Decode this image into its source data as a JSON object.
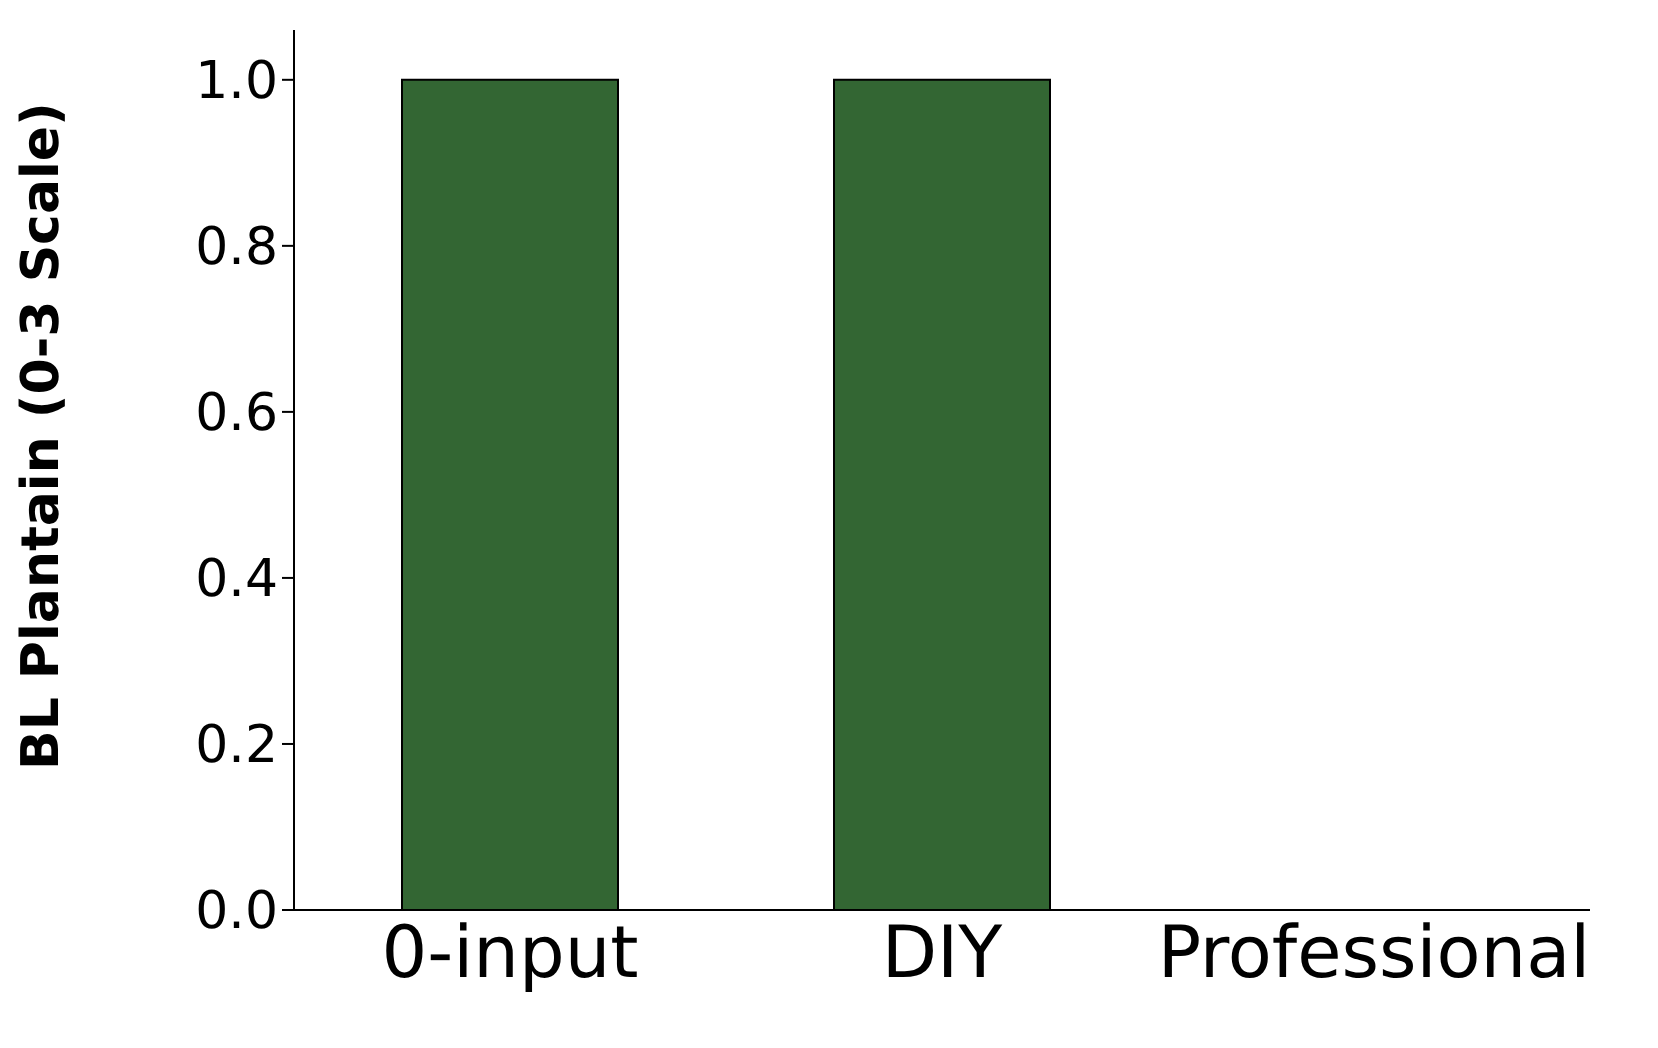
{
  "chart_data": {
    "type": "bar",
    "ylabel": "BL Plantain (0-3 Scale)",
    "categories": [
      "0-input",
      "DIY",
      "Professional"
    ],
    "values": [
      1.0,
      1.0,
      0.0
    ],
    "errors": [
      0,
      0,
      0
    ],
    "color": "#336633",
    "ylim": [
      0,
      1.06
    ],
    "yticks": [
      {
        "value": 0,
        "label": "0.0"
      },
      {
        "value": 0.2,
        "label": "0.2"
      },
      {
        "value": 0.4,
        "label": "0.4"
      },
      {
        "value": 0.6,
        "label": "0.6"
      },
      {
        "value": 0.8,
        "label": "0.8"
      },
      {
        "value": 1,
        "label": "1.0"
      }
    ],
    "grid": false,
    "legend": false
  }
}
